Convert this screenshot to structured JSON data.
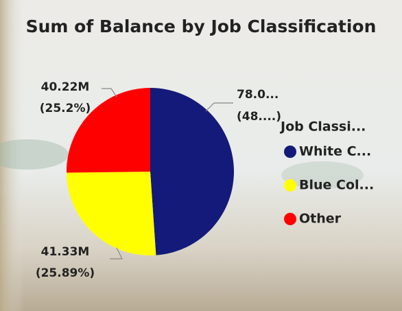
{
  "chart_data": {
    "type": "pie",
    "title": "Sum of Balance by Job Classification",
    "legend_title": "Job Classi...",
    "categories": [
      "White C...",
      "Blue Col...",
      "Other"
    ],
    "values": [
      78.05,
      41.33,
      40.22
    ],
    "value_labels": [
      "78.0...",
      "41.33M",
      "40.22M"
    ],
    "percents": [
      48.9,
      25.89,
      25.2
    ],
    "percent_labels": [
      "(48....)",
      "(25.89%)",
      "(25.2%)"
    ],
    "colors": [
      "#131a7a",
      "#ffff00",
      "#ff0000"
    ],
    "legend": "right"
  }
}
